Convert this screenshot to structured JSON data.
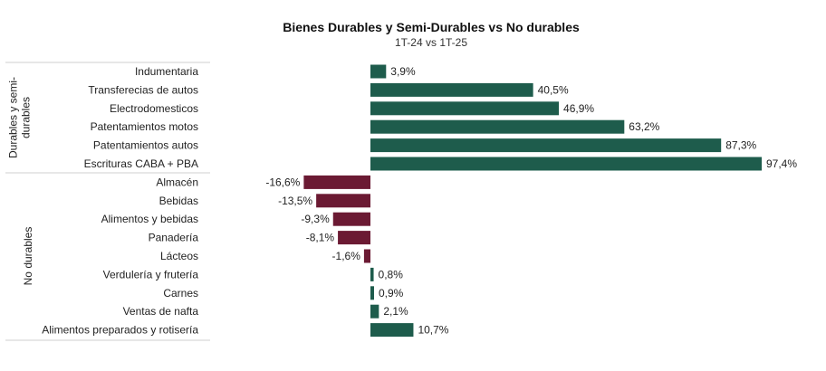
{
  "chart_data": {
    "type": "bar",
    "orientation": "horizontal",
    "title": "Bienes Durables y Semi-Durables vs No durables",
    "subtitle": "1T-24 vs 1T-25",
    "groups": [
      {
        "label": "Durables y semi-durables",
        "categories": [
          "Indumentaria",
          "Transferecias de autos",
          "Electrodomesticos",
          "Patentamientos motos",
          "Patentamientos autos",
          "Escrituras CABA + PBA"
        ],
        "values": [
          3.9,
          40.5,
          46.9,
          63.2,
          87.3,
          97.4
        ],
        "value_labels": [
          "3,9%",
          "40,5%",
          "46,9%",
          "63,2%",
          "87,3%",
          "97,4%"
        ]
      },
      {
        "label": "No durables",
        "categories": [
          "Almacén",
          "Bebidas",
          "Alimentos y bebidas",
          "Panadería",
          "Lácteos",
          "Verdulería y frutería",
          "Carnes",
          "Ventas de nafta",
          "Alimentos preparados y rotisería"
        ],
        "values": [
          -16.6,
          -13.5,
          -9.3,
          -8.1,
          -1.6,
          0.8,
          0.9,
          2.1,
          10.7
        ],
        "value_labels": [
          "-16,6%",
          "-13,5%",
          "-9,3%",
          "-8,1%",
          "-1,6%",
          "0,8%",
          "0,9%",
          "2,1%",
          "10,7%"
        ]
      }
    ],
    "colors": {
      "positive": "#1e5c4c",
      "negative": "#6b1a33"
    },
    "grid": false,
    "legend": "none"
  }
}
